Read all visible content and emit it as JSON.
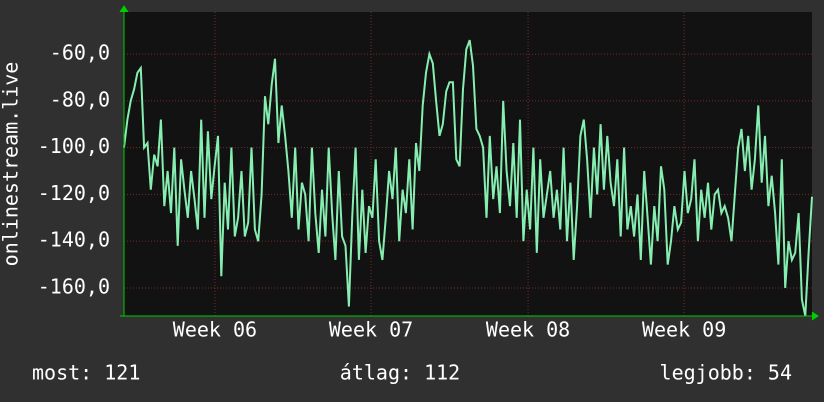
{
  "chart_data": {
    "type": "line",
    "y_label": "onlinestream.live",
    "series": [
      {
        "name": "onlinestream.live",
        "color": "#86eeb0",
        "values": [
          -100,
          -88,
          -80,
          -75,
          -68,
          -66,
          -100,
          -98,
          -118,
          -103,
          -108,
          -88,
          -125,
          -110,
          -128,
          -100,
          -142,
          -105,
          -118,
          -130,
          -110,
          -122,
          -135,
          -88,
          -130,
          -93,
          -122,
          -108,
          -95,
          -155,
          -115,
          -135,
          -100,
          -138,
          -130,
          -110,
          -138,
          -132,
          -100,
          -135,
          -140,
          -120,
          -78,
          -90,
          -73,
          -62,
          -98,
          -82,
          -95,
          -110,
          -130,
          -100,
          -135,
          -115,
          -120,
          -140,
          -100,
          -128,
          -145,
          -118,
          -138,
          -100,
          -128,
          -148,
          -110,
          -138,
          -142,
          -168,
          -130,
          -100,
          -148,
          -118,
          -145,
          -125,
          -130,
          -105,
          -140,
          -148,
          -130,
          -110,
          -122,
          -100,
          -140,
          -118,
          -128,
          -105,
          -135,
          -98,
          -110,
          -82,
          -68,
          -60,
          -64,
          -80,
          -95,
          -90,
          -76,
          -72,
          -72,
          -105,
          -108,
          -75,
          -58,
          -54,
          -65,
          -92,
          -95,
          -100,
          -130,
          -95,
          -122,
          -108,
          -128,
          -80,
          -110,
          -125,
          -98,
          -130,
          -88,
          -140,
          -118,
          -135,
          -100,
          -145,
          -105,
          -130,
          -120,
          -110,
          -130,
          -118,
          -135,
          -100,
          -140,
          -115,
          -148,
          -125,
          -95,
          -88,
          -105,
          -130,
          -100,
          -120,
          -90,
          -118,
          -95,
          -115,
          -125,
          -105,
          -138,
          -100,
          -135,
          -125,
          -138,
          -120,
          -148,
          -110,
          -130,
          -150,
          -125,
          -140,
          -108,
          -118,
          -150,
          -140,
          -125,
          -135,
          -132,
          -110,
          -128,
          -122,
          -105,
          -140,
          -118,
          -130,
          -115,
          -135,
          -120,
          -118,
          -128,
          -125,
          -130,
          -140,
          -120,
          -100,
          -92,
          -110,
          -95,
          -118,
          -105,
          -82,
          -115,
          -95,
          -125,
          -112,
          -128,
          -150,
          -105,
          -160,
          -140,
          -148,
          -145,
          -128,
          -165,
          -172,
          -145,
          -121
        ]
      }
    ],
    "xlim": [
      0,
      205
    ],
    "xticks": [
      {
        "value": 27.1,
        "label": "Week 06"
      },
      {
        "value": 73.6,
        "label": "Week 07"
      },
      {
        "value": 120.4,
        "label": "Week 08"
      },
      {
        "value": 166.9,
        "label": "Week 09"
      }
    ],
    "ylim": [
      -172,
      -42
    ],
    "yticks": [
      {
        "value": -60,
        "label": "-60,0"
      },
      {
        "value": -80,
        "label": "-80,0"
      },
      {
        "value": -100,
        "label": "-100,0"
      },
      {
        "value": -120,
        "label": "-120,0"
      },
      {
        "value": -140,
        "label": "-140,0"
      },
      {
        "value": -160,
        "label": "-160,0"
      }
    ],
    "grid": true,
    "stats": [
      "most: 121",
      "átlag: 112",
      "legjobb: 54"
    ]
  }
}
